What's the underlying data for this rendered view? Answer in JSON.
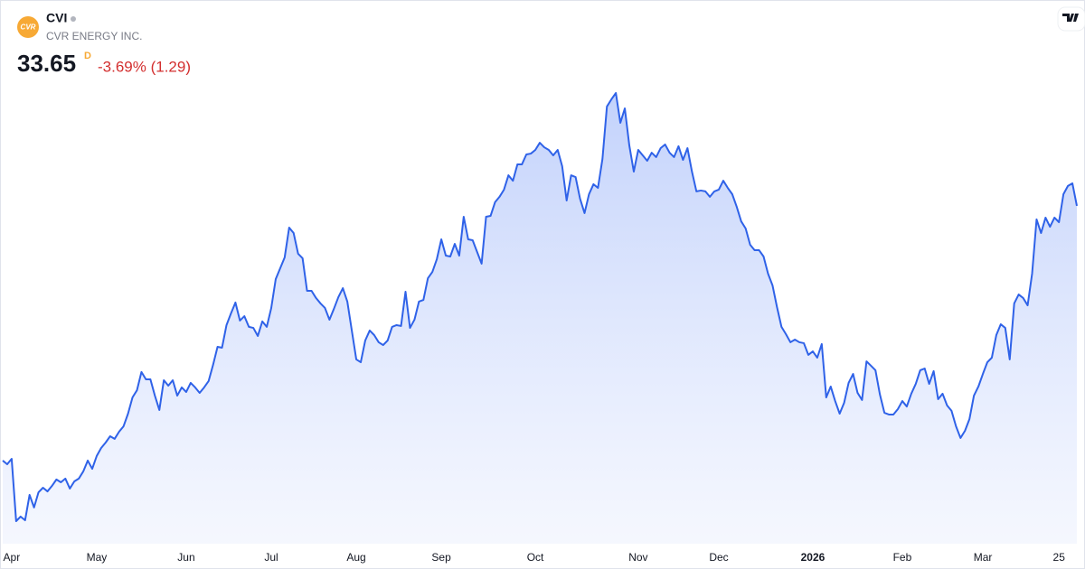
{
  "chart_data": {
    "type": "area",
    "symbol": "CVI",
    "logo_text": "CVR",
    "company": "CVR ENERGY INC.",
    "price": "33.65",
    "interval": "D",
    "change": "-3.69% (1.29)",
    "color": "#2f62e8",
    "series": [
      {
        "name": "CVI",
        "color": "#2f62e8",
        "values": [
          19.1,
          18.89,
          19.2,
          15.64,
          15.9,
          15.69,
          17.14,
          16.42,
          17.29,
          17.55,
          17.34,
          17.65,
          18.02,
          17.86,
          18.07,
          17.5,
          17.91,
          18.07,
          18.48,
          19.1,
          18.63,
          19.36,
          19.82,
          20.13,
          20.49,
          20.34,
          20.75,
          21.06,
          21.78,
          22.71,
          23.12,
          24.16,
          23.74,
          23.74,
          22.81,
          21.99,
          23.69,
          23.38,
          23.69,
          22.81,
          23.28,
          23.02,
          23.54,
          23.28,
          22.97,
          23.28,
          23.64,
          24.57,
          25.6,
          25.55,
          26.84,
          27.51,
          28.13,
          27.1,
          27.35,
          26.74,
          26.68,
          26.22,
          27.05,
          26.74,
          27.82,
          29.47,
          30.09,
          30.71,
          32.41,
          32.1,
          30.92,
          30.66,
          28.8,
          28.8,
          28.39,
          28.08,
          27.82,
          27.15,
          27.77,
          28.44,
          28.95,
          28.18,
          26.53,
          24.88,
          24.72,
          25.96,
          26.53,
          26.27,
          25.86,
          25.7,
          25.96,
          26.74,
          26.84,
          26.79,
          28.75,
          26.68,
          27.15,
          28.18,
          28.28,
          29.52,
          29.88,
          30.61,
          31.74,
          30.81,
          30.76,
          31.48,
          30.81,
          33.03,
          31.74,
          31.69,
          31.02,
          30.35,
          33.03,
          33.08,
          33.86,
          34.17,
          34.58,
          35.4,
          35.09,
          36.02,
          36.02,
          36.59,
          36.64,
          36.85,
          37.26,
          37.0,
          36.85,
          36.54,
          36.85,
          35.92,
          33.96,
          35.4,
          35.3,
          34.06,
          33.24,
          34.32,
          34.89,
          34.68,
          36.33,
          39.33,
          39.74,
          40.1,
          38.4,
          39.22,
          37.11,
          35.61,
          36.85,
          36.54,
          36.23,
          36.69,
          36.44,
          36.95,
          37.16,
          36.69,
          36.44,
          37.06,
          36.28,
          36.95,
          35.61,
          34.48,
          34.53,
          34.48,
          34.17,
          34.48,
          34.58,
          35.09,
          34.68,
          34.32,
          33.6,
          32.77,
          32.36,
          31.43,
          31.12,
          31.12,
          30.76,
          29.78,
          29.11,
          27.87,
          26.74,
          26.32,
          25.86,
          26.01,
          25.86,
          25.81,
          25.14,
          25.34,
          24.98,
          25.76,
          22.71,
          23.33,
          22.5,
          21.78,
          22.4,
          23.54,
          24.05,
          22.97,
          22.56,
          24.77,
          24.52,
          24.26,
          22.87,
          21.83,
          21.73,
          21.73,
          22.04,
          22.5,
          22.19,
          22.92,
          23.48,
          24.26,
          24.36,
          23.48,
          24.21,
          22.61,
          22.92,
          22.25,
          21.94,
          21.06,
          20.39,
          20.8,
          21.47,
          22.81,
          23.33,
          24.05,
          24.72,
          24.98,
          26.27,
          26.89,
          26.68,
          24.88,
          28.08,
          28.59,
          28.39,
          27.97,
          29.78,
          32.88,
          32.1,
          32.98,
          32.46,
          32.98,
          32.72,
          34.32,
          34.79,
          34.94,
          33.65
        ]
      }
    ],
    "xticks": [
      {
        "value": 2,
        "label": "Apr"
      },
      {
        "value": 21,
        "label": "May"
      },
      {
        "value": 41,
        "label": "Jun"
      },
      {
        "value": 60,
        "label": "Jul"
      },
      {
        "value": 79,
        "label": "Aug"
      },
      {
        "value": 98,
        "label": "Sep"
      },
      {
        "value": 119,
        "label": "Oct"
      },
      {
        "value": 142,
        "label": "Nov"
      },
      {
        "value": 160,
        "label": "Dec"
      },
      {
        "value": 181,
        "label": "2026",
        "bold": true
      },
      {
        "value": 201,
        "label": "Feb"
      },
      {
        "value": 219,
        "label": "Mar"
      },
      {
        "value": 236,
        "label": "25"
      }
    ]
  }
}
